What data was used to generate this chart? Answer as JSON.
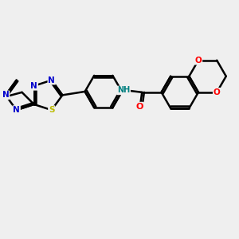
{
  "background_color": "#efefef",
  "bond_color": "#000000",
  "atom_colors": {
    "N": "#0000cc",
    "S": "#bbbb00",
    "O": "#ff0000",
    "NH": "#008080",
    "C": "#000000"
  },
  "figsize": [
    3.0,
    3.0
  ],
  "dpi": 100,
  "xlim": [
    0,
    10
  ],
  "ylim": [
    0,
    10
  ]
}
